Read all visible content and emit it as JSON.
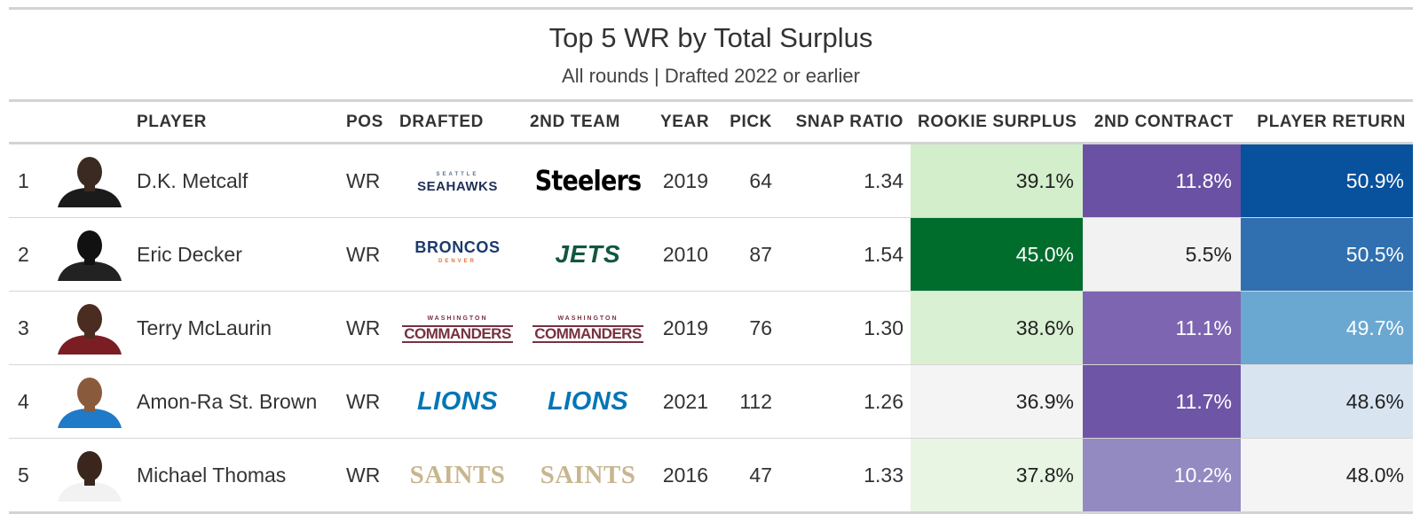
{
  "title": "Top 5 WR by Total Surplus",
  "subtitle": "All rounds | Drafted 2022 or earlier",
  "columns": {
    "rank": "",
    "headshot": "",
    "player": "PLAYER",
    "pos": "POS",
    "drafted": "DRAFTED",
    "second_team": "2ND TEAM",
    "year": "YEAR",
    "pick": "PICK",
    "snap_ratio": "SNAP RATIO",
    "rookie_surplus": "ROOKIE SURPLUS",
    "second_contract": "2ND CONTRACT",
    "player_return": "PLAYER RETURN"
  },
  "rows": [
    {
      "rank": "1",
      "player": "D.K. Metcalf",
      "pos": "WR",
      "drafted": {
        "text": "SEAHAWKS",
        "small": "SEATTLE",
        "icon": "seahawks-logo"
      },
      "second_team": {
        "text": "Steelers",
        "icon": "steelers-logo"
      },
      "year": "2019",
      "pick": "64",
      "snap_ratio": "1.34",
      "rookie_surplus": "39.1%",
      "second_contract": "11.8%",
      "player_return": "50.9%",
      "colors": {
        "rookie_surplus": "#d3eecb",
        "second_contract": "#6a51a3",
        "player_return": "#08519c"
      },
      "text_colors": {
        "rookie_surplus": "#222222",
        "second_contract": "#ffffff",
        "player_return": "#ffffff"
      },
      "headshot": {
        "skin": "#3b2a22",
        "jersey": "#1b1b1b"
      }
    },
    {
      "rank": "2",
      "player": "Eric Decker",
      "pos": "WR",
      "drafted": {
        "text": "BRONCOS",
        "small": "DENVER",
        "icon": "broncos-logo"
      },
      "second_team": {
        "text": "JETS",
        "icon": "jets-logo"
      },
      "year": "2010",
      "pick": "87",
      "snap_ratio": "1.54",
      "rookie_surplus": "45.0%",
      "second_contract": "5.5%",
      "player_return": "50.5%",
      "colors": {
        "rookie_surplus": "#006d2c",
        "second_contract": "#f2f2f2",
        "player_return": "#3070b0"
      },
      "text_colors": {
        "rookie_surplus": "#ffffff",
        "second_contract": "#222222",
        "player_return": "#ffffff"
      },
      "headshot": {
        "skin": "#111111",
        "jersey": "#222222"
      }
    },
    {
      "rank": "3",
      "player": "Terry McLaurin",
      "pos": "WR",
      "drafted": {
        "text": "COMMANDERS",
        "small": "WASHINGTON",
        "icon": "commanders-logo"
      },
      "second_team": {
        "text": "COMMANDERS",
        "small": "WASHINGTON",
        "icon": "commanders-logo"
      },
      "year": "2019",
      "pick": "76",
      "snap_ratio": "1.30",
      "rookie_surplus": "38.6%",
      "second_contract": "11.1%",
      "player_return": "49.7%",
      "colors": {
        "rookie_surplus": "#d9f0d3",
        "second_contract": "#7d65b1",
        "player_return": "#6aa8d2"
      },
      "text_colors": {
        "rookie_surplus": "#222222",
        "second_contract": "#ffffff",
        "player_return": "#ffffff"
      },
      "headshot": {
        "skin": "#4a2c20",
        "jersey": "#7a1e24"
      }
    },
    {
      "rank": "4",
      "player": "Amon-Ra St. Brown",
      "pos": "WR",
      "drafted": {
        "text": "LIONS",
        "icon": "lions-logo"
      },
      "second_team": {
        "text": "LIONS",
        "icon": "lions-logo"
      },
      "year": "2021",
      "pick": "112",
      "snap_ratio": "1.26",
      "rookie_surplus": "36.9%",
      "second_contract": "11.7%",
      "player_return": "48.6%",
      "colors": {
        "rookie_surplus": "#f4f4f4",
        "second_contract": "#6f55a6",
        "player_return": "#d8e5f1"
      },
      "text_colors": {
        "rookie_surplus": "#222222",
        "second_contract": "#ffffff",
        "player_return": "#222222"
      },
      "headshot": {
        "skin": "#8a5a3c",
        "jersey": "#1f7ac8"
      }
    },
    {
      "rank": "5",
      "player": "Michael Thomas",
      "pos": "WR",
      "drafted": {
        "text": "SAINTS",
        "icon": "saints-logo"
      },
      "second_team": {
        "text": "SAINTS",
        "icon": "saints-logo"
      },
      "year": "2016",
      "pick": "47",
      "snap_ratio": "1.33",
      "rookie_surplus": "37.8%",
      "second_contract": "10.2%",
      "player_return": "48.0%",
      "colors": {
        "rookie_surplus": "#e8f5e3",
        "second_contract": "#938ac2",
        "player_return": "#f4f4f4"
      },
      "text_colors": {
        "rookie_surplus": "#222222",
        "second_contract": "#ffffff",
        "player_return": "#222222"
      },
      "headshot": {
        "skin": "#3a261d",
        "jersey": "#f2f2f2"
      }
    }
  ]
}
